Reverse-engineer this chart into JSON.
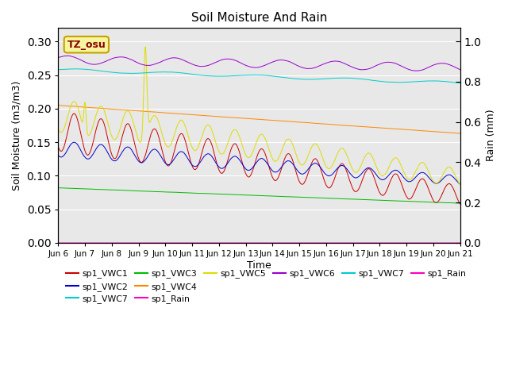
{
  "title": "Soil Moisture And Rain",
  "xlabel": "Time",
  "ylabel_left": "Soil Moisture (m3/m3)",
  "ylabel_right": "Rain (mm)",
  "annotation_text": "TZ_osu",
  "bg_color": "#e8e8e8",
  "ylim_left": [
    0.0,
    0.32
  ],
  "ylim_right": [
    0.0,
    1.0666
  ],
  "duration_days": 15,
  "num_points": 3600,
  "series": {
    "sp1_VWC1": {
      "color": "#cc0000"
    },
    "sp1_VWC2": {
      "color": "#0000cc"
    },
    "sp1_VWC3": {
      "color": "#00bb00"
    },
    "sp1_VWC4": {
      "color": "#ff8800"
    },
    "sp1_VWC5": {
      "color": "#dddd00"
    },
    "sp1_VWC6": {
      "color": "#9900cc"
    },
    "sp1_VWC7": {
      "color": "#00cccc"
    },
    "sp1_Rain": {
      "color": "#ff00bb"
    }
  },
  "xtick_labels": [
    "Jun 6",
    "Jun 7",
    "Jun 8",
    "Jun 9",
    "Jun 10",
    "Jun 11",
    "Jun 12",
    "Jun 13",
    "Jun 14",
    "Jun 15",
    "Jun 16",
    "Jun 17",
    "Jun 18",
    "Jun 19",
    "Jun 20",
    "Jun 21"
  ],
  "xtick_positions": [
    0,
    1,
    2,
    3,
    4,
    5,
    6,
    7,
    8,
    9,
    10,
    11,
    12,
    13,
    14,
    15
  ],
  "yticks_left": [
    0.0,
    0.05,
    0.1,
    0.15,
    0.2,
    0.25,
    0.3
  ],
  "yticks_right": [
    0.0,
    0.2,
    0.4,
    0.6,
    0.8,
    1.0
  ],
  "legend_row1": [
    {
      "label": "sp1_VWC1",
      "color": "#cc0000"
    },
    {
      "label": "sp1_VWC2",
      "color": "#0000cc"
    },
    {
      "label": "sp1_VWC3",
      "color": "#00bb00"
    },
    {
      "label": "sp1_VWC4",
      "color": "#ff8800"
    },
    {
      "label": "sp1_VWC5",
      "color": "#dddd00"
    },
    {
      "label": "sp1_VWC6",
      "color": "#9900cc"
    }
  ],
  "legend_row2": [
    {
      "label": "sp1_VWC7",
      "color": "#00cccc"
    },
    {
      "label": "sp1_Rain",
      "color": "#ff00bb"
    }
  ]
}
